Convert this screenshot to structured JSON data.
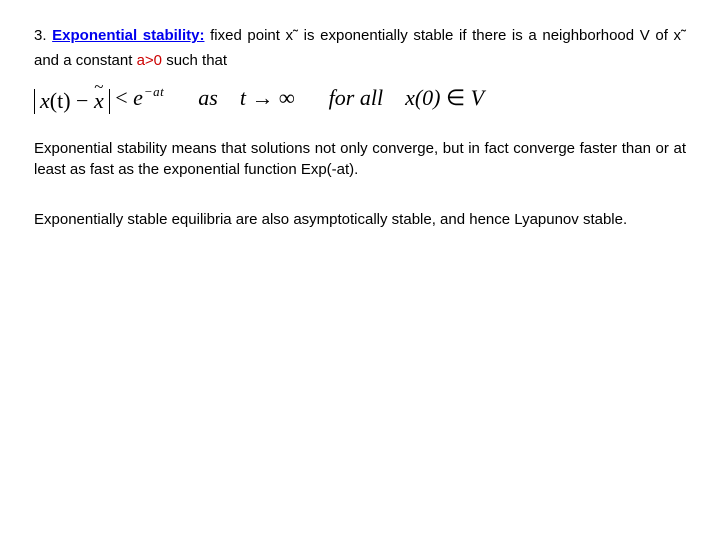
{
  "colors": {
    "heading": "#0000ee",
    "constant": "#cc0000",
    "text": "#000000",
    "background": "#ffffff"
  },
  "intro": {
    "number": "3. ",
    "heading": "Exponential stability:",
    "line1_after": " fixed point x˜ is exponentially stable if there is a neighborhood V of x˜ and a constant ",
    "a_gt": "a>0",
    "line1_tail": " such that"
  },
  "formula": {
    "lhs_x_t": "x",
    "lhs_paren_t": "(t)",
    "minus": " − ",
    "xtilde": "x",
    "lt": " < ",
    "e": "e",
    "exp": "−at",
    "as": "as",
    "t_to_inf": "t → ∞",
    "for_all": "for all",
    "x0": "x(0)",
    "in": " ∈ ",
    "V": "V"
  },
  "para2": "Exponential stability means that solutions not only converge, but in fact converge faster than or at least as fast as the exponential function Exp(-at).",
  "para3": "Exponentially stable equilibria are also asymptotically stable, and hence Lyapunov stable."
}
